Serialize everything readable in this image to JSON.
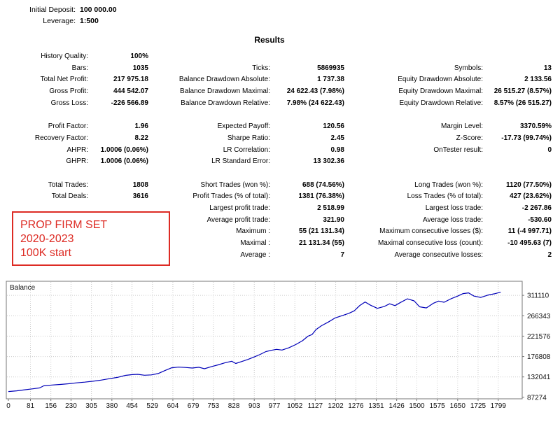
{
  "header": {
    "rows": [
      {
        "label": "Initial Deposit:",
        "value": "100 000.00"
      },
      {
        "label": "Leverage:",
        "value": "1:500"
      }
    ]
  },
  "results_title": "Results",
  "stats": {
    "rows": [
      {
        "c1": {
          "label": "History Quality:",
          "value": "100%"
        },
        "c2": {
          "label": "",
          "value": ""
        },
        "c3": {
          "label": "",
          "value": ""
        }
      },
      {
        "c1": {
          "label": "Bars:",
          "value": "1035"
        },
        "c2": {
          "label": "Ticks:",
          "value": "5869935"
        },
        "c3": {
          "label": "Symbols:",
          "value": "13"
        }
      },
      {
        "c1": {
          "label": "Total Net Profit:",
          "value": "217 975.18"
        },
        "c2": {
          "label": "Balance Drawdown Absolute:",
          "value": "1 737.38"
        },
        "c3": {
          "label": "Equity Drawdown Absolute:",
          "value": "2 133.56"
        }
      },
      {
        "c1": {
          "label": "Gross Profit:",
          "value": "444 542.07"
        },
        "c2": {
          "label": "Balance Drawdown Maximal:",
          "value": "24 622.43 (7.98%)"
        },
        "c3": {
          "label": "Equity Drawdown Maximal:",
          "value": "26 515.27 (8.57%)"
        }
      },
      {
        "c1": {
          "label": "Gross Loss:",
          "value": "-226 566.89"
        },
        "c2": {
          "label": "Balance Drawdown Relative:",
          "value": "7.98% (24 622.43)"
        },
        "c3": {
          "label": "Equity Drawdown Relative:",
          "value": "8.57% (26 515.27)"
        }
      },
      {
        "spacer": true
      },
      {
        "c1": {
          "label": "Profit Factor:",
          "value": "1.96"
        },
        "c2": {
          "label": "Expected Payoff:",
          "value": "120.56"
        },
        "c3": {
          "label": "Margin Level:",
          "value": "3370.59%"
        }
      },
      {
        "c1": {
          "label": "Recovery Factor:",
          "value": "8.22"
        },
        "c2": {
          "label": "Sharpe Ratio:",
          "value": "2.45"
        },
        "c3": {
          "label": "Z-Score:",
          "value": "-17.73 (99.74%)"
        }
      },
      {
        "c1": {
          "label": "AHPR:",
          "value": "1.0006 (0.06%)"
        },
        "c2": {
          "label": "LR Correlation:",
          "value": "0.98"
        },
        "c3": {
          "label": "OnTester result:",
          "value": "0"
        }
      },
      {
        "c1": {
          "label": "GHPR:",
          "value": "1.0006 (0.06%)"
        },
        "c2": {
          "label": "LR Standard Error:",
          "value": "13 302.36"
        },
        "c3": {
          "label": "",
          "value": ""
        }
      },
      {
        "spacer": true
      },
      {
        "c1": {
          "label": "Total Trades:",
          "value": "1808"
        },
        "c2": {
          "label": "Short Trades (won %):",
          "value": "688 (74.56%)"
        },
        "c3": {
          "label": "Long Trades (won %):",
          "value": "1120 (77.50%)"
        }
      },
      {
        "c1": {
          "label": "Total Deals:",
          "value": "3616"
        },
        "c2": {
          "label": "Profit Trades (% of total):",
          "value": "1381 (76.38%)"
        },
        "c3": {
          "label": "Loss Trades (% of total):",
          "value": "427 (23.62%)"
        }
      },
      {
        "c1": {
          "label": "",
          "value": ""
        },
        "c2": {
          "label": "Largest profit trade:",
          "value": "2 518.99"
        },
        "c3": {
          "label": "Largest loss trade:",
          "value": "-2 267.86"
        }
      },
      {
        "c1": {
          "label": "",
          "value": ""
        },
        "c2": {
          "label": "Average profit trade:",
          "value": "321.90"
        },
        "c3": {
          "label": "Average loss trade:",
          "value": "-530.60"
        }
      },
      {
        "c1": {
          "label": "",
          "value": ""
        },
        "c2": {
          "label": "Maximum :",
          "value": "55 (21 131.34)"
        },
        "c3": {
          "label": "Maximum consecutive losses ($):",
          "value": "11 (-4 997.71)"
        }
      },
      {
        "c1": {
          "label": "",
          "value": ""
        },
        "c2": {
          "label": "Maximal :",
          "value": "21 131.34 (55)"
        },
        "c3": {
          "label": "Maximal consecutive loss (count):",
          "value": "-10 495.63 (7)"
        }
      },
      {
        "c1": {
          "label": "",
          "value": ""
        },
        "c2": {
          "label": "Average :",
          "value": "7"
        },
        "c3": {
          "label": "Average consecutive losses:",
          "value": "2"
        }
      }
    ]
  },
  "annotation": {
    "lines": [
      "PROP FIRM SET",
      "2020-2023",
      "100K start"
    ],
    "color": "#dd2b24"
  },
  "chart_data": {
    "type": "line",
    "title": "Balance",
    "legend_position": "top-left",
    "grid": true,
    "xlim": [
      0,
      1887
    ],
    "ylim": [
      84000,
      342000
    ],
    "x_ticks": [
      0,
      81,
      156,
      230,
      305,
      380,
      454,
      529,
      604,
      679,
      753,
      828,
      903,
      977,
      1052,
      1127,
      1202,
      1276,
      1351,
      1426,
      1500,
      1575,
      1650,
      1725,
      1799
    ],
    "y_ticks": [
      311110,
      266343,
      221576,
      176808,
      132041,
      87274
    ],
    "series": [
      {
        "name": "Balance",
        "color": "#0000b8",
        "x": [
          0,
          30,
          60,
          90,
          115,
          130,
          160,
          190,
          220,
          250,
          280,
          310,
          340,
          370,
          400,
          430,
          455,
          475,
          500,
          525,
          550,
          575,
          600,
          625,
          650,
          675,
          700,
          720,
          745,
          770,
          795,
          820,
          835,
          855,
          880,
          905,
          925,
          945,
          965,
          985,
          1005,
          1030,
          1055,
          1080,
          1100,
          1115,
          1130,
          1150,
          1175,
          1200,
          1225,
          1250,
          1270,
          1290,
          1310,
          1330,
          1355,
          1380,
          1400,
          1420,
          1440,
          1465,
          1490,
          1510,
          1535,
          1560,
          1580,
          1600,
          1625,
          1650,
          1670,
          1690,
          1710,
          1735,
          1760,
          1785,
          1808
        ],
        "y": [
          100000,
          101500,
          103800,
          106000,
          108000,
          112500,
          114200,
          115500,
          117000,
          119000,
          120500,
          122500,
          125000,
          128000,
          131000,
          135500,
          137200,
          137800,
          135800,
          136500,
          139500,
          146000,
          152200,
          153500,
          152800,
          151500,
          153200,
          150000,
          154500,
          158500,
          163000,
          166500,
          161500,
          165500,
          170500,
          176500,
          181500,
          187500,
          190500,
          192500,
          191000,
          196000,
          203000,
          211500,
          221500,
          225000,
          236000,
          244500,
          252500,
          261500,
          266500,
          271500,
          277000,
          288500,
          296500,
          289500,
          282500,
          286500,
          292500,
          288500,
          295500,
          303500,
          299000,
          286000,
          283500,
          293500,
          298500,
          296000,
          303500,
          309500,
          315000,
          316500,
          309500,
          306500,
          311500,
          314500,
          317975
        ]
      }
    ],
    "colors": {
      "grid": "#cccccc",
      "border": "#777777",
      "tick_text": "#111111"
    }
  }
}
